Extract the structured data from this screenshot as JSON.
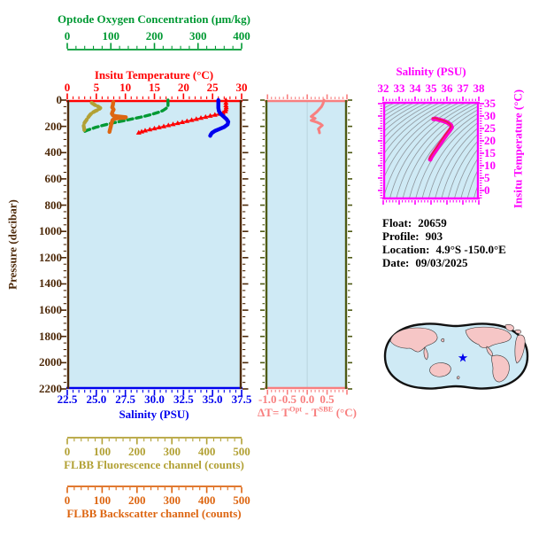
{
  "colors": {
    "background": "#ffffff",
    "panel_bg": "#cfeaf5",
    "oxygen_green": "#009933",
    "temp_red": "#ff0000",
    "pressure_brown": "#4e2a0a",
    "salinity_blue": "#0000ee",
    "fluor_darkyellow": "#b2a135",
    "backscatter_orange": "#dd6612",
    "deltaT_salmon": "#f87f7f",
    "mid_axis_olive": "#4e5a14",
    "magenta": "#ff00ff",
    "ts_curve_outer": "#ff00cc",
    "ts_curve_inner": "#e42244",
    "contour_gray": "#8f979e",
    "map_land": "#f6c6c6",
    "map_outline": "#111111",
    "star_blue": "#0000ee",
    "zero_line": "#b9d3dd"
  },
  "axes": {
    "oxygen": {
      "title": "Optode Oxygen Concentration (μm/kg)",
      "ticks": [
        "0",
        "100",
        "200",
        "300",
        "400"
      ]
    },
    "insitu_temp": {
      "title": "Insitu Temperature (°C)",
      "ticks": [
        "0",
        "5",
        "10",
        "15",
        "20",
        "25",
        "30"
      ]
    },
    "pressure": {
      "title": "Pressure (decibar)",
      "ticks": [
        "0",
        "200",
        "400",
        "600",
        "800",
        "1000",
        "1200",
        "1400",
        "1600",
        "1800",
        "2000",
        "2200"
      ]
    },
    "salinity": {
      "title": "Salinity (PSU)",
      "ticks": [
        "22.5",
        "25.0",
        "27.5",
        "30.0",
        "32.5",
        "35.0",
        "37.5"
      ]
    },
    "fluorescence": {
      "title": "FLBB Fluorescence channel (counts)",
      "ticks": [
        "0",
        "100",
        "200",
        "300",
        "400",
        "500"
      ]
    },
    "backscatter": {
      "title": "FLBB Backscatter channel (counts)",
      "ticks": [
        "0",
        "100",
        "200",
        "300",
        "400",
        "500"
      ]
    },
    "delta_t": {
      "title_parts": {
        "prefix": "ΔT= T",
        "sup1": "Opt",
        "mid": " - T",
        "sup2": "SBE",
        "suffix": " (°C)"
      },
      "ticks": [
        "-1.0",
        "-0.5",
        "0.0",
        "0.5"
      ]
    },
    "ts_salinity": {
      "title": "Salinity (PSU)",
      "ticks": [
        "32",
        "33",
        "34",
        "35",
        "36",
        "37",
        "38"
      ]
    },
    "ts_temp": {
      "title": "Insitu Temperature (°C)",
      "ticks": [
        "35",
        "30",
        "25",
        "20",
        "15",
        "10",
        "5",
        "0"
      ]
    }
  },
  "info": {
    "float_label": "Float:",
    "float_value": "20659",
    "profile_label": "Profile:",
    "profile_value": "903",
    "location_label": "Location:",
    "location_value": "4.9°S  -150.0°E",
    "date_label": "Date:",
    "date_value": "09/03/2025"
  },
  "chart_data": {
    "panels": [
      {
        "id": "profile",
        "type": "line",
        "ylabel": "Pressure (decibar)",
        "ylim": [
          0,
          2200
        ],
        "y_major": 200,
        "y_minor": 50,
        "axes_x": [
          {
            "id": "oxygen",
            "label": "Optode Oxygen Concentration (μm/kg)",
            "lim": [
              0,
              400
            ],
            "major": 100,
            "minor": 20,
            "color_key": "oxygen_green"
          },
          {
            "id": "insitu_temp",
            "label": "Insitu Temperature (°C)",
            "lim": [
              0,
              30
            ],
            "major": 5,
            "minor": 1,
            "color_key": "temp_red"
          },
          {
            "id": "salinity",
            "label": "Salinity (PSU)",
            "lim": [
              22.5,
              37.5
            ],
            "major": 2.5,
            "minor": 0.5,
            "color_key": "salinity_blue"
          },
          {
            "id": "fluorescence",
            "label": "FLBB Fluorescence channel (counts)",
            "lim": [
              0,
              500
            ],
            "major": 100,
            "minor": 20,
            "color_key": "fluor_darkyellow"
          },
          {
            "id": "backscatter",
            "label": "FLBB Backscatter channel (counts)",
            "lim": [
              0,
              500
            ],
            "major": 100,
            "minor": 20,
            "color_key": "backscatter_orange"
          }
        ],
        "series": [
          {
            "name": "Insitu Temperature",
            "axis": "insitu_temp",
            "color": "#ff0000",
            "style": "triangles",
            "points": [
              [
                27.3,
                0
              ],
              [
                27.3,
                20
              ],
              [
                27.3,
                40
              ],
              [
                27.35,
                55
              ],
              [
                27.3,
                70
              ],
              [
                27.2,
                85
              ],
              [
                26.8,
                97
              ],
              [
                26.2,
                105
              ],
              [
                25.4,
                112
              ],
              [
                24.6,
                120
              ],
              [
                23.8,
                128
              ],
              [
                23.0,
                136
              ],
              [
                22.2,
                144
              ],
              [
                21.4,
                152
              ],
              [
                20.6,
                160
              ],
              [
                19.8,
                168
              ],
              [
                19.0,
                176
              ],
              [
                18.2,
                184
              ],
              [
                17.4,
                192
              ],
              [
                16.6,
                200
              ],
              [
                15.8,
                208
              ],
              [
                15.0,
                216
              ],
              [
                14.2,
                224
              ],
              [
                13.4,
                232
              ],
              [
                12.8,
                240
              ],
              [
                12.3,
                248
              ]
            ]
          },
          {
            "name": "Salinity",
            "axis": "salinity",
            "color": "#0000ee",
            "style": "thick",
            "points": [
              [
                35.5,
                0
              ],
              [
                35.5,
                30
              ],
              [
                35.5,
                60
              ],
              [
                35.55,
                85
              ],
              [
                35.7,
                105
              ],
              [
                35.95,
                125
              ],
              [
                36.2,
                145
              ],
              [
                36.35,
                165
              ],
              [
                36.3,
                185
              ],
              [
                36.0,
                205
              ],
              [
                35.6,
                220
              ],
              [
                35.2,
                235
              ],
              [
                34.95,
                250
              ],
              [
                34.85,
                262
              ],
              [
                34.8,
                272
              ]
            ]
          },
          {
            "name": "Optode Oxygen",
            "axis": "oxygen",
            "color": "#009933",
            "style": "dashed",
            "points": [
              [
                231,
                0
              ],
              [
                231,
                25
              ],
              [
                231,
                50
              ],
              [
                226,
                65
              ],
              [
                219,
                80
              ],
              [
                210,
                92
              ],
              [
                200,
                102
              ],
              [
                190,
                112
              ],
              [
                178,
                122
              ],
              [
                165,
                132
              ],
              [
                151,
                142
              ],
              [
                137,
                152
              ],
              [
                122,
                162
              ],
              [
                107,
                172
              ],
              [
                92,
                184
              ],
              [
                78,
                196
              ],
              [
                65,
                208
              ],
              [
                54,
                220
              ],
              [
                45,
                230
              ],
              [
                40,
                238
              ]
            ]
          },
          {
            "name": "FLBB Fluorescence",
            "axis": "fluorescence",
            "color": "#b2a135",
            "style": "dashed-thick",
            "points": [
              [
                70,
                20
              ],
              [
                78,
                35
              ],
              [
                88,
                48
              ],
              [
                95,
                60
              ],
              [
                90,
                72
              ],
              [
                80,
                84
              ],
              [
                72,
                96
              ],
              [
                66,
                110
              ],
              [
                62,
                124
              ],
              [
                58,
                138
              ],
              [
                55,
                152
              ],
              [
                51,
                166
              ],
              [
                48,
                180
              ],
              [
                47,
                195
              ],
              [
                48,
                210
              ],
              [
                49,
                225
              ],
              [
                48,
                236
              ]
            ]
          },
          {
            "name": "FLBB Backscatter",
            "axis": "backscatter",
            "color": "#dd6612",
            "style": "thick",
            "points": [
              [
                132,
                15
              ],
              [
                131,
                35
              ],
              [
                129,
                55
              ],
              [
                133,
                72
              ],
              [
                130,
                88
              ],
              [
                128,
                103
              ],
              [
                131,
                116
              ],
              [
                140,
                123
              ],
              [
                155,
                127
              ],
              [
                168,
                130
              ],
              [
                166,
                134
              ],
              [
                148,
                137
              ],
              [
                135,
                142
              ],
              [
                130,
                152
              ],
              [
                128,
                168
              ],
              [
                126,
                188
              ],
              [
                124,
                210
              ],
              [
                122,
                230
              ],
              [
                121,
                242
              ]
            ]
          }
        ]
      },
      {
        "id": "delta_t",
        "type": "line",
        "xlabel": "ΔT= T(Opt) - T(SBE) (°C)",
        "xlim": [
          -1.05,
          1.0
        ],
        "x_major": 0.5,
        "x_minor": 0.1,
        "ylim": [
          0,
          2200
        ],
        "series": [
          {
            "name": "ΔT",
            "color": "#f87f7f",
            "style": "line",
            "points": [
              [
                0.42,
                0
              ],
              [
                0.4,
                25
              ],
              [
                0.36,
                50
              ],
              [
                0.3,
                70
              ],
              [
                0.24,
                90
              ],
              [
                0.16,
                110
              ],
              [
                0.1,
                125
              ],
              [
                0.2,
                140
              ],
              [
                0.1,
                155
              ],
              [
                0.24,
                168
              ],
              [
                0.33,
                180
              ],
              [
                0.38,
                192
              ],
              [
                0.33,
                205
              ],
              [
                0.28,
                220
              ],
              [
                0.3,
                235
              ],
              [
                0.31,
                250
              ]
            ]
          }
        ]
      },
      {
        "id": "ts_diagram",
        "type": "line",
        "xlabel": "Salinity (PSU)",
        "xlim": [
          32,
          38
        ],
        "x_major": 1,
        "x_minor": 0.2,
        "ylabel": "Insitu Temperature (°C)",
        "ylim": [
          -4,
          36
        ],
        "y_major": 5,
        "y_minor": 1,
        "series": [
          {
            "name": "T-S curve",
            "color": "#ff00cc",
            "style": "ts",
            "points": [
              [
                35.15,
                28.8
              ],
              [
                35.3,
                28.9
              ],
              [
                35.5,
                28.5
              ],
              [
                35.8,
                28.0
              ],
              [
                36.05,
                27.3
              ],
              [
                36.25,
                26.3
              ],
              [
                36.3,
                25.4
              ],
              [
                36.15,
                24.0
              ],
              [
                35.95,
                22.3
              ],
              [
                35.75,
                20.5
              ],
              [
                35.55,
                18.6
              ],
              [
                35.35,
                16.7
              ],
              [
                35.15,
                14.8
              ],
              [
                35.0,
                13.3
              ],
              [
                34.95,
                12.5
              ]
            ]
          }
        ]
      }
    ]
  }
}
